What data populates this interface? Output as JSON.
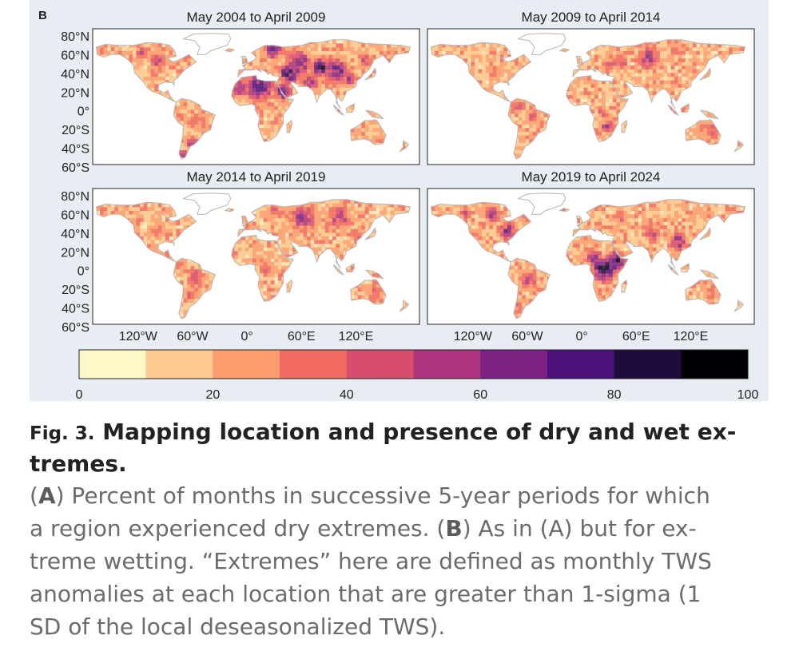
{
  "panel_letter": "B",
  "colors": {
    "figure_bg": "#e7edf2",
    "map_bg": "#ffffff",
    "land_base": "#fde7bf",
    "coast": "#b5b5b5"
  },
  "panels": [
    {
      "title": "May 2004 to April 2009"
    },
    {
      "title": "May 2009 to April 2014"
    },
    {
      "title": "May 2014 to April 2019"
    },
    {
      "title": "May 2019 to April 2024"
    }
  ],
  "lat_labels": [
    "80°N",
    "60°N",
    "40°N",
    "20°N",
    "0°",
    "20°S",
    "40°S",
    "60°S"
  ],
  "lon_labels": [
    "120°W",
    "60°W",
    "0°",
    "60°E",
    "120°E"
  ],
  "colorbar": {
    "ticks": [
      "0",
      "20",
      "40",
      "60",
      "80",
      "100"
    ],
    "bin_edges": [
      0,
      10,
      20,
      30,
      40,
      50,
      60,
      70,
      80,
      90,
      100
    ],
    "colors": [
      "#fdf9c6",
      "#fdc98e",
      "#fc9c6d",
      "#f06a5e",
      "#d84c6e",
      "#ad347c",
      "#7d2182",
      "#4c117b",
      "#1d0c3c",
      "#000004"
    ]
  },
  "caption": {
    "fig_label": "Fig. 3.",
    "title": "Mapping location and presence of dry and wet ex-",
    "title_cont": "tremes.",
    "body_a_label": "A",
    "body_1": ") Percent of months in successive 5-year periods for which",
    "body_2": "a region experienced dry extremes. (",
    "body_b_label": "B",
    "body_3": ") As in (A) but for ex-",
    "body_4": "treme wetting. “Extremes” here are defined as monthly TWS",
    "body_5": "anomalies at each location that are greater than 1-sigma (1",
    "body_6": "SD of the local deseasonalized TWS)."
  }
}
